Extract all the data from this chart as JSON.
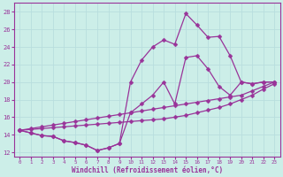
{
  "xlabel": "Windchill (Refroidissement éolien,°C)",
  "background_color": "#cceee8",
  "line_color": "#993399",
  "xlim": [
    -0.5,
    23.5
  ],
  "ylim": [
    11.5,
    29
  ],
  "yticks": [
    12,
    14,
    16,
    18,
    20,
    22,
    24,
    26,
    28
  ],
  "xticks": [
    0,
    1,
    2,
    3,
    4,
    5,
    6,
    7,
    8,
    9,
    10,
    11,
    12,
    13,
    14,
    15,
    16,
    17,
    18,
    19,
    20,
    21,
    22,
    23
  ],
  "line1_x": [
    0,
    1,
    2,
    3,
    4,
    5,
    6,
    7,
    8,
    9,
    10,
    11,
    12,
    13,
    14,
    15,
    16,
    17,
    18,
    19,
    20,
    21,
    22,
    23
  ],
  "line1_y": [
    14.5,
    14.2,
    13.9,
    13.8,
    13.3,
    13.1,
    12.8,
    12.2,
    12.5,
    13.0,
    20.0,
    22.5,
    24.0,
    24.8,
    24.3,
    27.8,
    26.5,
    25.1,
    25.2,
    23.0,
    20.0,
    19.8,
    20.0,
    20.0
  ],
  "line2_x": [
    0,
    1,
    2,
    3,
    4,
    5,
    6,
    7,
    8,
    9,
    10,
    11,
    12,
    13,
    14,
    15,
    16,
    17,
    18,
    19,
    20,
    21,
    22,
    23
  ],
  "line2_y": [
    14.5,
    14.2,
    13.9,
    13.8,
    13.3,
    13.1,
    12.8,
    12.2,
    12.5,
    13.0,
    16.5,
    17.5,
    18.5,
    20.0,
    17.5,
    22.8,
    23.0,
    21.5,
    19.5,
    18.5,
    20.0,
    19.8,
    20.0,
    20.0
  ],
  "line3_x": [
    0,
    1,
    2,
    3,
    4,
    5,
    6,
    7,
    8,
    9,
    10,
    11,
    12,
    13,
    14,
    15,
    16,
    17,
    18,
    19,
    20,
    21,
    22,
    23
  ],
  "line3_y": [
    14.5,
    14.7,
    14.9,
    15.1,
    15.3,
    15.5,
    15.7,
    15.9,
    16.1,
    16.3,
    16.5,
    16.7,
    16.9,
    17.1,
    17.3,
    17.5,
    17.7,
    17.9,
    18.1,
    18.3,
    18.5,
    19.0,
    19.5,
    20.0
  ],
  "line4_x": [
    0,
    1,
    2,
    3,
    4,
    5,
    6,
    7,
    8,
    9,
    10,
    11,
    12,
    13,
    14,
    15,
    16,
    17,
    18,
    19,
    20,
    21,
    22,
    23
  ],
  "line4_y": [
    14.5,
    14.6,
    14.7,
    14.8,
    14.9,
    15.0,
    15.1,
    15.2,
    15.3,
    15.4,
    15.5,
    15.6,
    15.7,
    15.8,
    16.0,
    16.2,
    16.5,
    16.8,
    17.1,
    17.5,
    18.0,
    18.5,
    19.2,
    19.8
  ],
  "grid_color": "#aadddd",
  "marker": "D",
  "marker_size": 2.5
}
